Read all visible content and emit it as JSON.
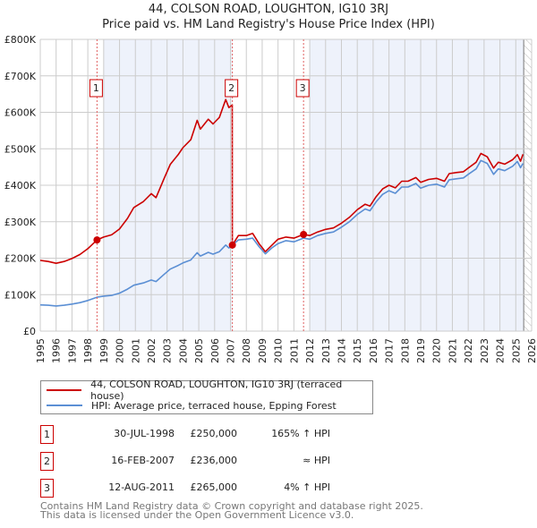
{
  "title_line1": "44, COLSON ROAD, LOUGHTON, IG10 3RJ",
  "title_line2": "Price paid vs. HM Land Registry's House Price Index (HPI)",
  "colors": {
    "property": "#cc0000",
    "hpi": "#5b8fd4",
    "shade": "#eef2fb"
  },
  "chart_data": {
    "type": "line",
    "title": "Price paid vs. HM Land Registry's House Price Index (HPI)",
    "xlim": [
      1995,
      2026
    ],
    "ylim": [
      0,
      800000
    ],
    "yticks": [
      {
        "v": 0,
        "label": "£0"
      },
      {
        "v": 100000,
        "label": "£100K"
      },
      {
        "v": 200000,
        "label": "£200K"
      },
      {
        "v": 300000,
        "label": "£300K"
      },
      {
        "v": 400000,
        "label": "£400K"
      },
      {
        "v": 500000,
        "label": "£500K"
      },
      {
        "v": 600000,
        "label": "£600K"
      },
      {
        "v": 700000,
        "label": "£700K"
      },
      {
        "v": 800000,
        "label": "£800K"
      }
    ],
    "xticks": [
      "1995",
      "1996",
      "1997",
      "1998",
      "1999",
      "2000",
      "2001",
      "2002",
      "2003",
      "2004",
      "2005",
      "2006",
      "2007",
      "2008",
      "2009",
      "2010",
      "2011",
      "2012",
      "2013",
      "2014",
      "2015",
      "2016",
      "2017",
      "2018",
      "2019",
      "2020",
      "2021",
      "2022",
      "2023",
      "2024",
      "2025",
      "2026"
    ],
    "grid": true,
    "shaded_ranges": [
      [
        1999,
        2007.12
      ],
      [
        2012,
        2025.5
      ]
    ],
    "future_hatch_from": 2025.5,
    "series": [
      {
        "name": "44, COLSON ROAD, LOUGHTON, IG10 3RJ (terraced house)",
        "color": "#cc0000",
        "x": [
          1995.0,
          1995.5,
          1996.0,
          1996.5,
          1997.0,
          1997.5,
          1998.0,
          1998.58,
          1999.0,
          1999.5,
          2000.0,
          2000.5,
          2000.9,
          2001.5,
          2002.0,
          2002.3,
          2002.8,
          2003.2,
          2003.7,
          2004.0,
          2004.5,
          2004.9,
          2005.1,
          2005.6,
          2005.9,
          2006.3,
          2006.7,
          2006.9,
          2007.11,
          2007.12,
          2007.5,
          2008.0,
          2008.4,
          2008.8,
          2009.2,
          2009.6,
          2010.0,
          2010.5,
          2011.0,
          2011.6,
          2012.0,
          2012.5,
          2013.0,
          2013.5,
          2014.0,
          2014.5,
          2015.0,
          2015.5,
          2015.8,
          2016.2,
          2016.6,
          2017.0,
          2017.4,
          2017.8,
          2018.2,
          2018.7,
          2019.0,
          2019.5,
          2020.0,
          2020.5,
          2020.8,
          2021.3,
          2021.7,
          2022.0,
          2022.5,
          2022.8,
          2023.2,
          2023.6,
          2023.9,
          2024.3,
          2024.8,
          2025.1,
          2025.3,
          2025.45
        ],
        "y": [
          194,
          191,
          186,
          191,
          199,
          210,
          226,
          250,
          258,
          264,
          280,
          309,
          339,
          355,
          377,
          366,
          417,
          457,
          484,
          503,
          525,
          578,
          554,
          581,
          568,
          586,
          635,
          613,
          620,
          236,
          262,
          262,
          268,
          240,
          218,
          235,
          252,
          258,
          255,
          265,
          262,
          272,
          279,
          283,
          296,
          312,
          333,
          348,
          343,
          369,
          390,
          400,
          393,
          411,
          411,
          421,
          408,
          416,
          419,
          411,
          432,
          435,
          437,
          447,
          463,
          487,
          478,
          447,
          463,
          458,
          470,
          484,
          466,
          485
        ]
      },
      {
        "name": "HPI: Average price, terraced house, Epping Forest",
        "color": "#5b8fd4",
        "x": [
          1995.0,
          1995.5,
          1996.0,
          1996.5,
          1997.0,
          1997.5,
          1998.0,
          1998.58,
          1999.0,
          1999.5,
          2000.0,
          2000.5,
          2000.9,
          2001.5,
          2002.0,
          2002.3,
          2002.8,
          2003.2,
          2003.7,
          2004.0,
          2004.5,
          2004.9,
          2005.1,
          2005.6,
          2005.9,
          2006.3,
          2006.7,
          2006.9,
          2007.12,
          2007.5,
          2008.0,
          2008.4,
          2008.8,
          2009.2,
          2009.6,
          2010.0,
          2010.5,
          2011.0,
          2011.6,
          2012.0,
          2012.5,
          2013.0,
          2013.5,
          2014.0,
          2014.5,
          2015.0,
          2015.5,
          2015.8,
          2016.2,
          2016.6,
          2017.0,
          2017.4,
          2017.8,
          2018.2,
          2018.7,
          2019.0,
          2019.5,
          2020.0,
          2020.5,
          2020.8,
          2021.3,
          2021.7,
          2022.0,
          2022.5,
          2022.8,
          2023.2,
          2023.6,
          2023.9,
          2024.3,
          2024.8,
          2025.1,
          2025.3,
          2025.45
        ],
        "y": [
          72,
          71,
          69,
          71,
          74,
          78,
          84,
          93,
          96,
          98,
          104,
          115,
          126,
          132,
          140,
          136,
          155,
          170,
          180,
          187,
          195,
          215,
          206,
          216,
          211,
          218,
          236,
          228,
          236,
          250,
          252,
          255,
          232,
          212,
          228,
          240,
          248,
          245,
          255,
          252,
          262,
          268,
          272,
          285,
          300,
          320,
          335,
          330,
          355,
          375,
          385,
          378,
          395,
          395,
          405,
          392,
          400,
          403,
          395,
          415,
          418,
          420,
          430,
          445,
          468,
          460,
          430,
          445,
          440,
          452,
          465,
          448,
          460
        ]
      }
    ],
    "y_units": "thousands GBP",
    "sales": [
      {
        "label": "1",
        "x": 1998.58,
        "y": 250,
        "date": "30-JUL-1998",
        "price": "£250,000",
        "relative": "165% ↑ HPI"
      },
      {
        "label": "2",
        "x": 2007.12,
        "y": 236,
        "date": "16-FEB-2007",
        "price": "£236,000",
        "relative": "≈ HPI"
      },
      {
        "label": "3",
        "x": 2011.61,
        "y": 265,
        "date": "12-AUG-2011",
        "price": "£265,000",
        "relative": "4% ↑ HPI"
      }
    ],
    "legend_placement": "below"
  },
  "footer_line1": "Contains HM Land Registry data © Crown copyright and database right 2025.",
  "footer_line2": "This data is licensed under the Open Government Licence v3.0."
}
